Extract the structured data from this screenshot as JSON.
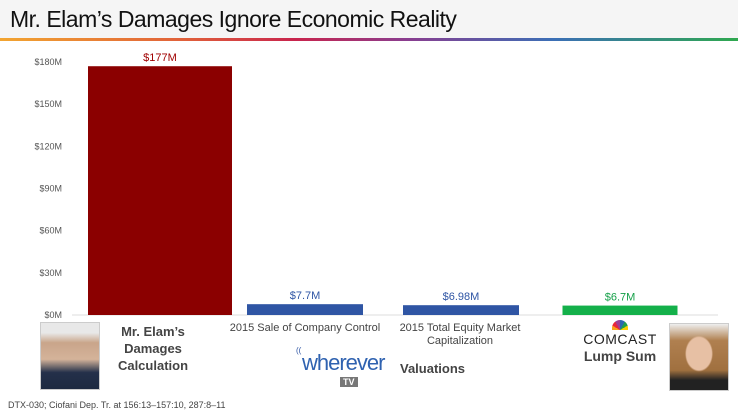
{
  "title": "Mr. Elam’s Damages Ignore Economic Reality",
  "chart_data": {
    "type": "bar",
    "categories": [
      "Mr. Elam’s Damages Calculation",
      "2015 Sale of Company Control",
      "2015 Total Equity Market Capitalization",
      "COMCAST Lump Sum"
    ],
    "values": [
      177,
      7.7,
      6.98,
      6.7
    ],
    "data_labels": [
      "$177M",
      "$7.7M",
      "$6.98M",
      "$6.7M"
    ],
    "colors": [
      "#8b0000",
      "#2f55a4",
      "#2f55a4",
      "#14b04a"
    ],
    "label_colors": [
      "#a00000",
      "#2f55a4",
      "#2f55a4",
      "#14a048"
    ],
    "yticks": [
      "$0M",
      "$30M",
      "$60M",
      "$90M",
      "$120M",
      "$150M",
      "$180M"
    ],
    "ylim": [
      0,
      180
    ],
    "unit": "$M"
  },
  "labels": {
    "elam_line1": "Mr. Elam’s",
    "elam_line2": "Damages",
    "elam_line3": "Calculation",
    "sale": "2015 Sale of Company Control",
    "equity_line1": "2015 Total Equity Market",
    "equity_line2": "Capitalization",
    "wherever_logo": "wherever",
    "wherever_tv": "TV",
    "valuations": "Valuations",
    "comcast_logo": "COMCAST",
    "lump_sum": "Lump Sum"
  },
  "source": "DTX-030; Ciofani Dep. Tr. at 156:13–157:10, 287:8–11"
}
